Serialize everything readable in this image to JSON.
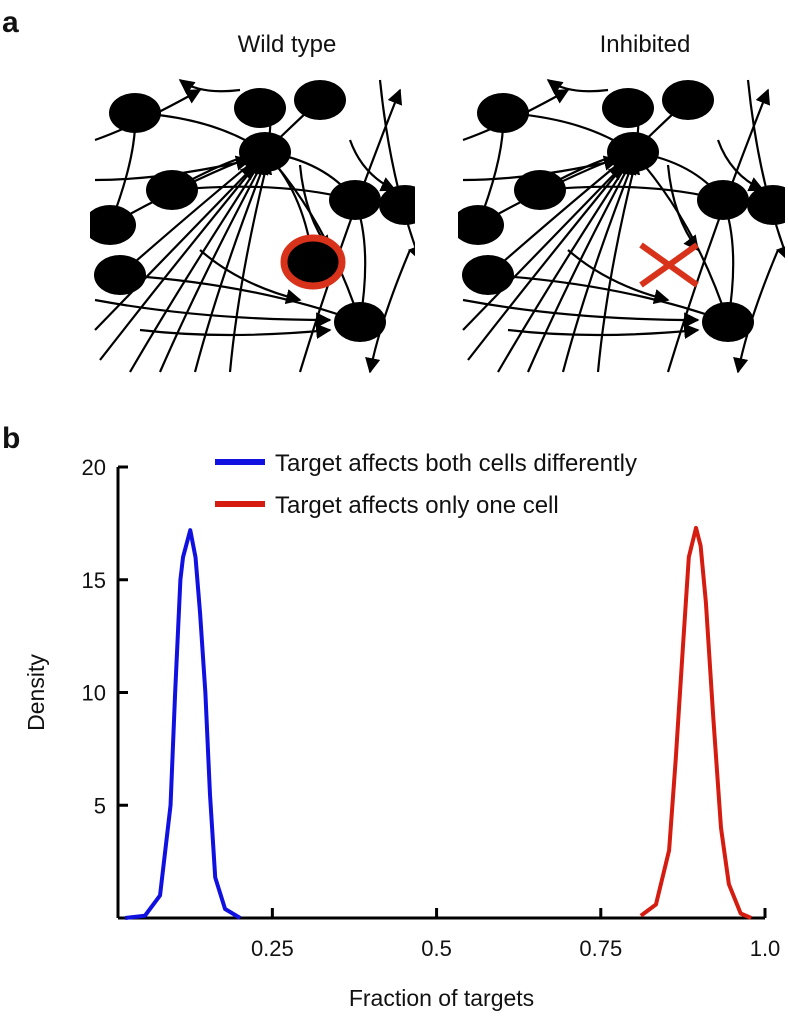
{
  "panel_labels": [
    "a",
    "b"
  ],
  "diagram": {
    "titles": [
      "Wild type",
      "Inhibited"
    ]
  },
  "chart_data": {
    "type": "line",
    "xlabel": "Fraction of targets",
    "ylabel": "Density",
    "xlim": [
      0.015,
      1.0
    ],
    "xticks": [
      0.25,
      0.5,
      0.75,
      {
        "value": 1,
        "label": "1.0"
      }
    ],
    "ylim": [
      0,
      20
    ],
    "yticks": [
      5,
      10,
      15,
      20
    ],
    "legend": "top-center",
    "series": [
      {
        "name": "Target affects both cells differently",
        "color": "#1010e0",
        "x": [
          0.026,
          0.056,
          0.079,
          0.095,
          0.102,
          0.11,
          0.114,
          0.125,
          0.133,
          0.14,
          0.148,
          0.155,
          0.163,
          0.178,
          0.201
        ],
        "values": [
          0,
          0.1,
          1,
          5,
          10,
          15,
          16,
          17.2,
          16,
          13.5,
          10,
          5.5,
          1.8,
          0.4,
          0
        ]
      },
      {
        "name": "Target affects only one cell",
        "color": "#d41c10",
        "x": [
          0.811,
          0.834,
          0.854,
          0.864,
          0.875,
          0.884,
          0.895,
          0.902,
          0.91,
          0.921,
          0.933,
          0.945,
          0.963,
          0.979
        ],
        "values": [
          0.1,
          0.6,
          3,
          7,
          12,
          16,
          17.3,
          16.5,
          14,
          9,
          4,
          1.5,
          0.2,
          0
        ]
      }
    ]
  }
}
